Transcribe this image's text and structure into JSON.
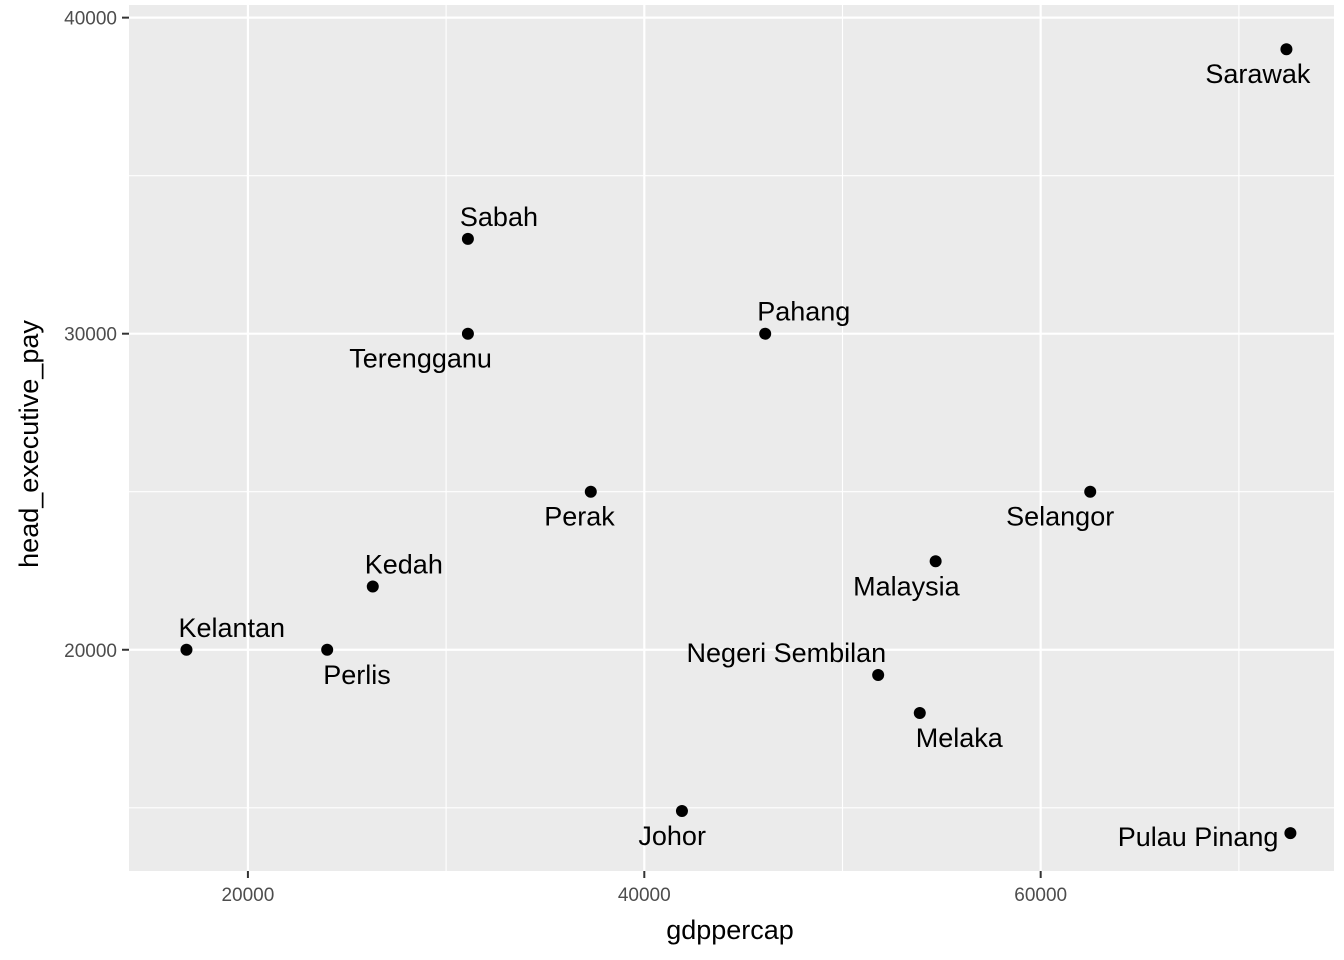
{
  "chart_data": {
    "type": "scatter",
    "title": "",
    "xlabel": "gdppercap",
    "ylabel": "head_executive_pay",
    "xlim": [
      14000,
      74800
    ],
    "ylim": [
      13000,
      40400
    ],
    "x_ticks": [
      20000,
      40000,
      60000
    ],
    "y_ticks": [
      20000,
      30000,
      40000
    ],
    "x_tick_labels": [
      "20000",
      "40000",
      "60000"
    ],
    "y_tick_labels": [
      "20000",
      "30000",
      "40000"
    ],
    "grid": true,
    "legend": "none",
    "points": [
      {
        "label": "Sarawak",
        "x": 72400,
        "y": 39000,
        "label_pos": "below-left"
      },
      {
        "label": "Sabah",
        "x": 31100,
        "y": 33000,
        "label_pos": "above-right"
      },
      {
        "label": "Pahang",
        "x": 46100,
        "y": 30000,
        "label_pos": "above-right"
      },
      {
        "label": "Terengganu",
        "x": 31100,
        "y": 30000,
        "label_pos": "below-left"
      },
      {
        "label": "Perak",
        "x": 37300,
        "y": 25000,
        "label_pos": "below-left"
      },
      {
        "label": "Selangor",
        "x": 62500,
        "y": 25000,
        "label_pos": "below-left"
      },
      {
        "label": "Malaysia",
        "x": 54700,
        "y": 22800,
        "label_pos": "below-left"
      },
      {
        "label": "Kedah",
        "x": 26300,
        "y": 22000,
        "label_pos": "above-right"
      },
      {
        "label": "Kelantan",
        "x": 16900,
        "y": 20000,
        "label_pos": "above-right"
      },
      {
        "label": "Perlis",
        "x": 24000,
        "y": 20000,
        "label_pos": "below-right"
      },
      {
        "label": "Negeri Sembilan",
        "x": 51800,
        "y": 19200,
        "label_pos": "above-left"
      },
      {
        "label": "Melaka",
        "x": 53900,
        "y": 18000,
        "label_pos": "below-right"
      },
      {
        "label": "Johor",
        "x": 41900,
        "y": 14900,
        "label_pos": "below-left"
      },
      {
        "label": "Pulau Pinang",
        "x": 72600,
        "y": 14200,
        "label_pos": "left"
      }
    ],
    "colors": {
      "panel": "#ebebeb",
      "grid_major": "#ffffff",
      "point": "#000000",
      "tick_text": "#4d4d4d",
      "tick_mark": "#333333"
    }
  }
}
